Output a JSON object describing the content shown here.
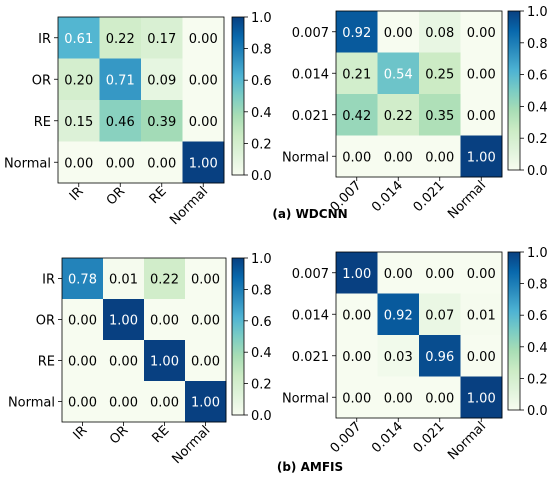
{
  "captions": {
    "top": "(a) WDCNN",
    "bottom": "(b) AMFIS"
  },
  "colormap": {
    "name": "GnBu",
    "stops": [
      "#f7fcf0",
      "#e0f3db",
      "#ccebc5",
      "#a8ddb5",
      "#7bccc4",
      "#4eb3d3",
      "#2b8cbe",
      "#0868ac",
      "#084081"
    ],
    "range": [
      0.0,
      1.0
    ],
    "colorbar_ticks": [
      "0.0",
      "0.2",
      "0.4",
      "0.6",
      "0.8",
      "1.0"
    ]
  },
  "chart_data": [
    {
      "type": "heatmap",
      "title": "",
      "row_labels": [
        "IR",
        "OR",
        "RE",
        "Normal"
      ],
      "col_labels": [
        "IR",
        "OR",
        "RE",
        "Normal"
      ],
      "values": [
        [
          0.61,
          0.22,
          0.17,
          0.0
        ],
        [
          0.2,
          0.71,
          0.09,
          0.0
        ],
        [
          0.15,
          0.46,
          0.39,
          0.0
        ],
        [
          0.0,
          0.0,
          0.0,
          1.0
        ]
      ],
      "cell_text": [
        [
          "0.61",
          "0.22",
          "0.17",
          "0.00"
        ],
        [
          "0.20",
          "0.71",
          "0.09",
          "0.00"
        ],
        [
          "0.15",
          "0.46",
          "0.39",
          "0.00"
        ],
        [
          "0.00",
          "0.00",
          "0.00",
          "1.00"
        ]
      ],
      "colorbar_range": [
        0.0,
        1.0
      ]
    },
    {
      "type": "heatmap",
      "title": "",
      "row_labels": [
        "0.007",
        "0.014",
        "0.021",
        "Normal"
      ],
      "col_labels": [
        "0.007",
        "0.014",
        "0.021",
        "Normal"
      ],
      "values": [
        [
          0.92,
          0.0,
          0.08,
          0.0
        ],
        [
          0.21,
          0.54,
          0.25,
          0.0
        ],
        [
          0.42,
          0.22,
          0.35,
          0.0
        ],
        [
          0.0,
          0.0,
          0.0,
          1.0
        ]
      ],
      "cell_text": [
        [
          "0.92",
          "0.00",
          "0.08",
          "0.00"
        ],
        [
          "0.21",
          "0.54",
          "0.25",
          "0.00"
        ],
        [
          "0.42",
          "0.22",
          "0.35",
          "0.00"
        ],
        [
          "0.00",
          "0.00",
          "0.00",
          "1.00"
        ]
      ],
      "colorbar_range": [
        0.0,
        1.0
      ]
    },
    {
      "type": "heatmap",
      "title": "",
      "row_labels": [
        "IR",
        "OR",
        "RE",
        "Normal"
      ],
      "col_labels": [
        "IR",
        "OR",
        "RE",
        "Normal"
      ],
      "values": [
        [
          0.78,
          0.01,
          0.22,
          0.0
        ],
        [
          0.0,
          1.0,
          0.0,
          0.0
        ],
        [
          0.0,
          0.0,
          1.0,
          0.0
        ],
        [
          0.0,
          0.0,
          0.0,
          1.0
        ]
      ],
      "cell_text": [
        [
          "0.78",
          "0.01",
          "0.22",
          "0.00"
        ],
        [
          "0.00",
          "1.00",
          "0.00",
          "0.00"
        ],
        [
          "0.00",
          "0.00",
          "1.00",
          "0.00"
        ],
        [
          "0.00",
          "0.00",
          "0.00",
          "1.00"
        ]
      ],
      "colorbar_range": [
        0.0,
        1.0
      ]
    },
    {
      "type": "heatmap",
      "title": "",
      "row_labels": [
        "0.007",
        "0.014",
        "0.021",
        "Normal"
      ],
      "col_labels": [
        "0.007",
        "0.014",
        "0.021",
        "Normal"
      ],
      "values": [
        [
          1.0,
          0.0,
          0.0,
          0.0
        ],
        [
          0.0,
          0.92,
          0.07,
          0.01
        ],
        [
          0.0,
          0.03,
          0.96,
          0.0
        ],
        [
          0.0,
          0.0,
          0.0,
          1.0
        ]
      ],
      "cell_text": [
        [
          "1.00",
          "0.00",
          "0.00",
          "0.00"
        ],
        [
          "0.00",
          "0.92",
          "0.07",
          "0.01"
        ],
        [
          "0.00",
          "0.03",
          "0.96",
          "0.00"
        ],
        [
          "0.00",
          "0.00",
          "0.00",
          "1.00"
        ]
      ],
      "colorbar_range": [
        0.0,
        1.0
      ]
    }
  ]
}
